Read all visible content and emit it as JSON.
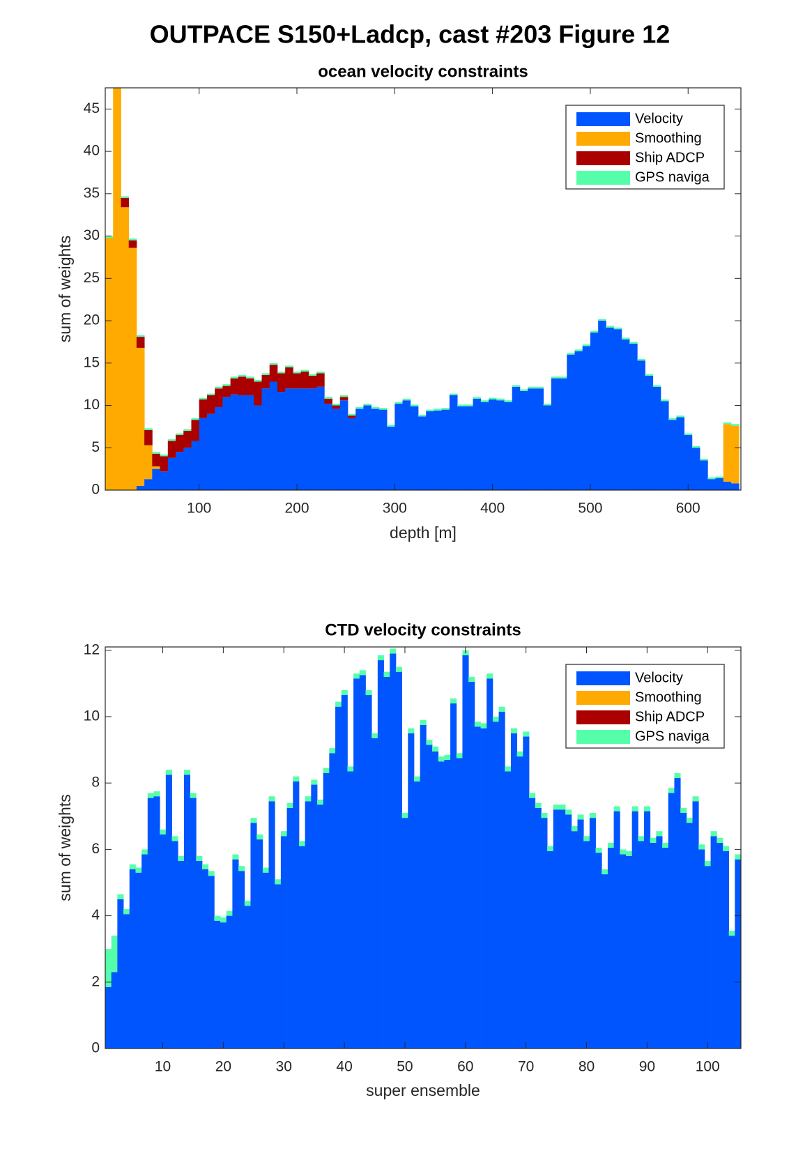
{
  "title": "OUTPACE S150+Ladcp, cast #203  Figure 12",
  "chart_data": [
    {
      "type": "bar",
      "stacked": true,
      "title": "ocean velocity constraints",
      "xlabel": "depth [m]",
      "ylabel": "sum of weights",
      "xlim": [
        4,
        654
      ],
      "ylim": [
        0,
        47.5
      ],
      "xticks": [
        100,
        200,
        300,
        400,
        500,
        600
      ],
      "yticks": [
        0,
        5,
        10,
        15,
        20,
        25,
        30,
        35,
        40,
        45
      ],
      "legend": "upper right",
      "x": [
        8,
        16,
        24,
        32,
        40,
        48,
        56,
        64,
        72,
        80,
        88,
        96,
        104,
        112,
        120,
        128,
        136,
        144,
        152,
        160,
        168,
        176,
        184,
        192,
        200,
        208,
        216,
        224,
        232,
        240,
        248,
        256,
        264,
        272,
        280,
        288,
        296,
        304,
        312,
        320,
        328,
        336,
        344,
        352,
        360,
        368,
        376,
        384,
        392,
        400,
        408,
        416,
        424,
        432,
        440,
        448,
        456,
        464,
        472,
        480,
        488,
        496,
        504,
        512,
        520,
        528,
        536,
        544,
        552,
        560,
        568,
        576,
        584,
        592,
        600,
        608,
        616,
        624,
        632,
        640,
        648
      ],
      "series": [
        {
          "name": "Velocity",
          "color": "#0055ff",
          "values": [
            0,
            0,
            0,
            0,
            0.5,
            1.3,
            2.5,
            2.2,
            3.8,
            4.5,
            5.0,
            5.8,
            8.5,
            9.0,
            9.8,
            11.0,
            11.3,
            11.2,
            11.2,
            10.0,
            12.0,
            12.8,
            11.6,
            12.0,
            12.0,
            12.0,
            12.0,
            12.2,
            10.2,
            9.6,
            10.6,
            8.5,
            9.6,
            10.0,
            9.6,
            9.5,
            7.5,
            10.2,
            10.6,
            9.9,
            8.7,
            9.3,
            9.4,
            9.5,
            11.2,
            9.9,
            9.9,
            10.8,
            10.4,
            10.7,
            10.6,
            10.4,
            12.2,
            11.7,
            12.0,
            12.0,
            10.0,
            13.2,
            13.2,
            16.0,
            16.4,
            17.0,
            18.6,
            20.0,
            19.2,
            19.0,
            17.8,
            17.3,
            15.3,
            13.5,
            12.2,
            10.5,
            8.3,
            8.6,
            6.5,
            5.0,
            3.5,
            1.3,
            1.4,
            1.0,
            0.8
          ]
        },
        {
          "name": "Smoothing",
          "color": "#ffaa00",
          "values": [
            29.8,
            48,
            33.4,
            28.6,
            16.3,
            4.0,
            0.3,
            0,
            0,
            0,
            0,
            0,
            0,
            0,
            0,
            0,
            0,
            0,
            0,
            0,
            0,
            0,
            0,
            0,
            0,
            0,
            0,
            0,
            0,
            0,
            0,
            0,
            0,
            0,
            0,
            0,
            0,
            0,
            0,
            0,
            0,
            0,
            0,
            0,
            0,
            0,
            0,
            0,
            0,
            0,
            0,
            0,
            0,
            0,
            0,
            0,
            0,
            0,
            0,
            0,
            0,
            0,
            0,
            0,
            0,
            0,
            0,
            0,
            0,
            0,
            0,
            0,
            0,
            0,
            0,
            0,
            0,
            0,
            0,
            6.8,
            6.8
          ]
        },
        {
          "name": "Ship ADCP",
          "color": "#aa0000",
          "values": [
            0,
            0,
            1.1,
            0.9,
            1.3,
            1.8,
            1.5,
            1.8,
            2,
            2,
            2,
            2.5,
            2.2,
            2.2,
            2.2,
            1.3,
            1.9,
            2.2,
            2.0,
            2.8,
            1.6,
            2.0,
            2.2,
            2.5,
            1.8,
            2.0,
            1.5,
            1.6,
            0.6,
            0.4,
            0.4,
            0.3,
            0,
            0,
            0,
            0,
            0,
            0,
            0,
            0,
            0,
            0,
            0,
            0,
            0,
            0,
            0,
            0,
            0,
            0,
            0,
            0,
            0,
            0,
            0,
            0,
            0,
            0,
            0,
            0,
            0,
            0,
            0,
            0,
            0,
            0,
            0,
            0,
            0,
            0,
            0,
            0,
            0,
            0,
            0,
            0,
            0,
            0,
            0,
            0,
            0
          ]
        },
        {
          "name": "GPS naviga",
          "color": "#55ffaa",
          "values": [
            0.2,
            0.2,
            0.2,
            0.2,
            0.2,
            0.2,
            0.2,
            0.2,
            0.2,
            0.2,
            0.2,
            0.2,
            0.2,
            0.2,
            0.2,
            0.2,
            0.2,
            0.2,
            0.2,
            0.2,
            0.2,
            0.2,
            0.2,
            0.2,
            0.2,
            0.2,
            0.2,
            0.2,
            0.2,
            0.2,
            0.2,
            0.2,
            0.2,
            0.2,
            0.2,
            0.2,
            0.2,
            0.2,
            0.2,
            0.2,
            0.2,
            0.2,
            0.2,
            0.2,
            0.2,
            0.2,
            0.2,
            0.2,
            0.2,
            0.2,
            0.2,
            0.2,
            0.2,
            0.2,
            0.2,
            0.2,
            0.2,
            0.2,
            0.2,
            0.2,
            0.2,
            0.2,
            0.2,
            0.2,
            0.2,
            0.2,
            0.2,
            0.2,
            0.2,
            0.2,
            0.2,
            0.2,
            0.2,
            0.2,
            0.2,
            0.2,
            0.2,
            0.2,
            0.2,
            0.2,
            0.2
          ]
        }
      ]
    },
    {
      "type": "bar",
      "stacked": true,
      "title": "CTD velocity constraints",
      "xlabel": "super ensemble",
      "ylabel": "sum of weights",
      "xlim": [
        0.5,
        105.5
      ],
      "ylim": [
        0,
        12.1
      ],
      "xticks": [
        10,
        20,
        30,
        40,
        50,
        60,
        70,
        80,
        90,
        100
      ],
      "yticks": [
        0,
        2,
        4,
        6,
        8,
        10,
        12
      ],
      "legend": "upper right",
      "x": [
        1,
        2,
        3,
        4,
        5,
        6,
        7,
        8,
        9,
        10,
        11,
        12,
        13,
        14,
        15,
        16,
        17,
        18,
        19,
        20,
        21,
        22,
        23,
        24,
        25,
        26,
        27,
        28,
        29,
        30,
        31,
        32,
        33,
        34,
        35,
        36,
        37,
        38,
        39,
        40,
        41,
        42,
        43,
        44,
        45,
        46,
        47,
        48,
        49,
        50,
        51,
        52,
        53,
        54,
        55,
        56,
        57,
        58,
        59,
        60,
        61,
        62,
        63,
        64,
        65,
        66,
        67,
        68,
        69,
        70,
        71,
        72,
        73,
        74,
        75,
        76,
        77,
        78,
        79,
        80,
        81,
        82,
        83,
        84,
        85,
        86,
        87,
        88,
        89,
        90,
        91,
        92,
        93,
        94,
        95,
        96,
        97,
        98,
        99,
        100,
        101,
        102,
        103,
        104,
        105
      ],
      "series": [
        {
          "name": "Velocity",
          "color": "#0055ff",
          "values": [
            1.85,
            2.3,
            4.5,
            4.05,
            5.4,
            5.3,
            5.85,
            7.55,
            7.6,
            6.45,
            8.25,
            6.25,
            5.65,
            8.25,
            7.55,
            5.65,
            5.4,
            5.2,
            3.85,
            3.8,
            4.0,
            5.7,
            5.35,
            4.3,
            6.8,
            6.3,
            5.3,
            7.45,
            4.95,
            6.4,
            7.25,
            8.05,
            6.1,
            7.45,
            7.95,
            7.35,
            8.3,
            8.9,
            10.3,
            10.65,
            8.35,
            11.15,
            11.25,
            10.65,
            9.35,
            11.7,
            11.2,
            11.9,
            11.35,
            6.95,
            9.5,
            8.05,
            9.75,
            9.15,
            8.95,
            8.65,
            8.7,
            10.4,
            8.75,
            11.85,
            11.05,
            9.7,
            9.65,
            11.15,
            9.85,
            10.15,
            8.35,
            9.5,
            8.8,
            9.4,
            7.55,
            7.25,
            6.95,
            5.95,
            7.2,
            7.2,
            7.05,
            6.55,
            6.9,
            6.25,
            6.95,
            5.9,
            5.25,
            6.05,
            7.15,
            5.85,
            5.8,
            7.15,
            6.25,
            7.15,
            6.2,
            6.4,
            6.05,
            7.7,
            8.15,
            7.1,
            6.8,
            7.45,
            6.0,
            5.5,
            6.4,
            6.2,
            5.95,
            3.4,
            5.7
          ]
        },
        {
          "name": "Smoothing",
          "color": "#ffaa00",
          "values": [
            0,
            0,
            0,
            0,
            0,
            0,
            0,
            0,
            0,
            0,
            0,
            0,
            0,
            0,
            0,
            0,
            0,
            0,
            0,
            0,
            0,
            0,
            0,
            0,
            0,
            0,
            0,
            0,
            0,
            0,
            0,
            0,
            0,
            0,
            0,
            0,
            0,
            0,
            0,
            0,
            0,
            0,
            0,
            0,
            0,
            0,
            0,
            0,
            0,
            0,
            0,
            0,
            0,
            0,
            0,
            0,
            0,
            0,
            0,
            0,
            0,
            0,
            0,
            0,
            0,
            0,
            0,
            0,
            0,
            0,
            0,
            0,
            0,
            0,
            0,
            0,
            0,
            0,
            0,
            0,
            0,
            0,
            0,
            0,
            0,
            0,
            0,
            0,
            0,
            0,
            0,
            0,
            0,
            0,
            0,
            0,
            0,
            0,
            0,
            0,
            0,
            0,
            0,
            0,
            0
          ]
        },
        {
          "name": "Ship ADCP",
          "color": "#aa0000",
          "values": [
            0,
            0,
            0,
            0,
            0,
            0,
            0,
            0,
            0,
            0,
            0,
            0,
            0,
            0,
            0,
            0,
            0,
            0,
            0,
            0,
            0,
            0,
            0,
            0,
            0,
            0,
            0,
            0,
            0,
            0,
            0,
            0,
            0,
            0,
            0,
            0,
            0,
            0,
            0,
            0,
            0,
            0,
            0,
            0,
            0,
            0,
            0,
            0,
            0,
            0,
            0,
            0,
            0,
            0,
            0,
            0,
            0,
            0,
            0,
            0,
            0,
            0,
            0,
            0,
            0,
            0,
            0,
            0,
            0,
            0,
            0,
            0,
            0,
            0,
            0,
            0,
            0,
            0,
            0,
            0,
            0,
            0,
            0,
            0,
            0,
            0,
            0,
            0,
            0,
            0,
            0,
            0,
            0,
            0,
            0,
            0,
            0,
            0,
            0,
            0,
            0,
            0,
            0,
            0,
            0
          ]
        },
        {
          "name": "GPS naviga",
          "color": "#55ffaa",
          "values": [
            1.15,
            1.1,
            0.15,
            0.15,
            0.15,
            0.15,
            0.15,
            0.15,
            0.15,
            0.15,
            0.15,
            0.15,
            0.15,
            0.15,
            0.15,
            0.15,
            0.15,
            0.15,
            0.15,
            0.15,
            0.15,
            0.15,
            0.15,
            0.15,
            0.15,
            0.15,
            0.15,
            0.15,
            0.15,
            0.15,
            0.15,
            0.15,
            0.15,
            0.15,
            0.15,
            0.15,
            0.15,
            0.15,
            0.15,
            0.15,
            0.15,
            0.15,
            0.15,
            0.15,
            0.15,
            0.15,
            0.15,
            0.15,
            0.15,
            0.15,
            0.15,
            0.15,
            0.15,
            0.15,
            0.15,
            0.15,
            0.15,
            0.15,
            0.15,
            0.15,
            0.15,
            0.15,
            0.15,
            0.15,
            0.15,
            0.15,
            0.15,
            0.15,
            0.15,
            0.15,
            0.15,
            0.15,
            0.15,
            0.15,
            0.15,
            0.15,
            0.15,
            0.15,
            0.15,
            0.15,
            0.15,
            0.15,
            0.15,
            0.15,
            0.15,
            0.15,
            0.15,
            0.15,
            0.15,
            0.15,
            0.15,
            0.15,
            0.15,
            0.15,
            0.15,
            0.15,
            0.15,
            0.15,
            0.15,
            0.15,
            0.15,
            0.15,
            0.15,
            0.15,
            0.15
          ]
        }
      ]
    }
  ]
}
